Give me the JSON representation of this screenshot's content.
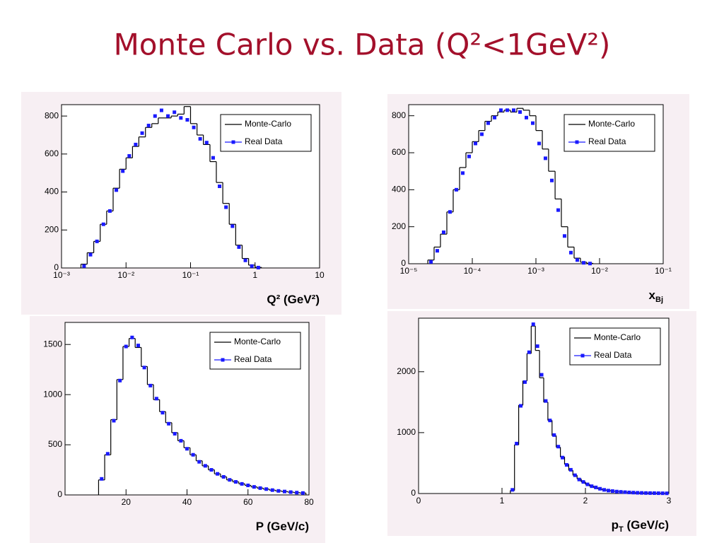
{
  "title": "Monte Carlo vs. Data (Q²<1GeV²)",
  "chart_data": [
    {
      "type": "histogram",
      "xlabel": [
        {
          "text": "Q² (GeV²)"
        }
      ],
      "xscale": "log",
      "xlim": [
        0.001,
        10
      ],
      "xticks": [
        {
          "value": 0.001,
          "label": "10⁻³"
        },
        {
          "value": 0.01,
          "label": "10⁻²"
        },
        {
          "value": 0.1,
          "label": "10⁻¹"
        },
        1,
        10
      ],
      "ylim": [
        0,
        860
      ],
      "yticks": [
        0,
        200,
        400,
        600,
        800
      ],
      "bins": [
        0.002,
        0.0025,
        0.00316,
        0.00398,
        0.00501,
        0.00631,
        0.00794,
        0.01,
        0.0126,
        0.0158,
        0.02,
        0.0251,
        0.0316,
        0.0398,
        0.0501,
        0.0631,
        0.0794,
        0.1,
        0.126,
        0.158,
        0.2,
        0.251,
        0.316,
        0.398,
        0.501,
        0.631,
        0.794,
        1,
        1.26
      ],
      "series": [
        {
          "name": "Monte-Carlo",
          "color": "#000000",
          "style": "step",
          "values": [
            20,
            80,
            140,
            230,
            300,
            420,
            520,
            580,
            640,
            690,
            740,
            760,
            790,
            790,
            800,
            810,
            850,
            760,
            700,
            650,
            560,
            450,
            340,
            230,
            120,
            50,
            15,
            3
          ]
        },
        {
          "name": "Real Data",
          "color": "#1a1aff",
          "style": "points",
          "values": [
            10,
            70,
            140,
            230,
            300,
            410,
            510,
            590,
            650,
            710,
            750,
            800,
            830,
            800,
            820,
            790,
            780,
            740,
            680,
            660,
            580,
            430,
            320,
            220,
            110,
            40,
            10,
            2
          ]
        }
      ]
    },
    {
      "type": "histogram",
      "xlabel": [
        {
          "text": "x"
        },
        {
          "text": "Bj",
          "sub": true
        }
      ],
      "xscale": "log",
      "xlim": [
        1e-05,
        0.1
      ],
      "xticks": [
        {
          "value": 1e-05,
          "label": "10⁻⁵"
        },
        {
          "value": 0.0001,
          "label": "10⁻⁴"
        },
        {
          "value": 0.001,
          "label": "10⁻³"
        },
        {
          "value": 0.01,
          "label": "10⁻²"
        },
        {
          "value": 0.1,
          "label": "10⁻¹"
        }
      ],
      "ylim": [
        0,
        860
      ],
      "yticks": [
        0,
        200,
        400,
        600,
        800
      ],
      "bins": [
        2e-05,
        2.51e-05,
        3.16e-05,
        3.98e-05,
        5.01e-05,
        6.31e-05,
        7.94e-05,
        0.0001,
        0.000126,
        0.000158,
        0.0002,
        0.000251,
        0.000316,
        0.000398,
        0.000501,
        0.000631,
        0.000794,
        0.001,
        0.00126,
        0.00158,
        0.002,
        0.00251,
        0.00316,
        0.00398,
        0.00501,
        0.00631,
        0.00794
      ],
      "series": [
        {
          "name": "Monte-Carlo",
          "color": "#000000",
          "style": "step",
          "values": [
            20,
            90,
            160,
            280,
            400,
            520,
            600,
            660,
            720,
            770,
            800,
            820,
            830,
            820,
            840,
            830,
            800,
            720,
            620,
            500,
            350,
            200,
            90,
            30,
            8,
            2
          ]
        },
        {
          "name": "Real Data",
          "color": "#1a1aff",
          "style": "points",
          "values": [
            10,
            70,
            170,
            280,
            400,
            490,
            580,
            650,
            700,
            760,
            790,
            830,
            830,
            830,
            820,
            790,
            760,
            650,
            570,
            450,
            290,
            150,
            60,
            20,
            5,
            1
          ]
        }
      ]
    },
    {
      "type": "histogram",
      "xlabel": [
        {
          "text": "P (GeV/c)"
        }
      ],
      "xscale": "linear",
      "xlim": [
        0,
        80
      ],
      "xticks": [
        20,
        40,
        60,
        80
      ],
      "ylim": [
        0,
        1720
      ],
      "yticks": [
        0,
        500,
        1000,
        1500
      ],
      "bins": [
        11,
        13,
        15,
        17,
        19,
        21,
        23,
        25,
        27,
        29,
        31,
        33,
        35,
        37,
        39,
        41,
        43,
        45,
        47,
        49,
        51,
        53,
        55,
        57,
        59,
        61,
        63,
        65,
        67,
        69,
        71,
        73,
        75,
        77,
        79
      ],
      "series": [
        {
          "name": "Monte-Carlo",
          "color": "#000000",
          "style": "step",
          "values": [
            150,
            400,
            750,
            1150,
            1480,
            1560,
            1470,
            1280,
            1100,
            950,
            830,
            720,
            620,
            540,
            470,
            400,
            340,
            290,
            250,
            210,
            180,
            150,
            130,
            110,
            95,
            80,
            68,
            58,
            48,
            40,
            34,
            28,
            23,
            19
          ]
        },
        {
          "name": "Real Data",
          "color": "#1a1aff",
          "style": "points",
          "values": [
            160,
            410,
            740,
            1140,
            1480,
            1570,
            1490,
            1270,
            1090,
            960,
            820,
            710,
            610,
            540,
            460,
            400,
            330,
            290,
            250,
            210,
            180,
            150,
            130,
            110,
            95,
            80,
            68,
            58,
            48,
            40,
            34,
            28,
            23,
            19
          ]
        }
      ]
    },
    {
      "type": "histogram",
      "xlabel": [
        {
          "text": "p"
        },
        {
          "text": "T",
          "sub": true
        },
        {
          "text": " (GeV/c)"
        }
      ],
      "xscale": "linear",
      "xlim": [
        0,
        3
      ],
      "xticks": [
        0,
        1,
        2,
        3
      ],
      "ylim": [
        0,
        2880
      ],
      "yticks": [
        0,
        1000,
        2000
      ],
      "bins": [
        1.1,
        1.15,
        1.2,
        1.25,
        1.3,
        1.35,
        1.4,
        1.45,
        1.5,
        1.55,
        1.6,
        1.65,
        1.7,
        1.75,
        1.8,
        1.85,
        1.9,
        1.95,
        2.0,
        2.05,
        2.1,
        2.15,
        2.2,
        2.25,
        2.3,
        2.35,
        2.4,
        2.45,
        2.5,
        2.55,
        2.6,
        2.65,
        2.7,
        2.75,
        2.8,
        2.85,
        2.9,
        2.95,
        3.0
      ],
      "series": [
        {
          "name": "Monte-Carlo",
          "color": "#000000",
          "style": "step",
          "values": [
            50,
            800,
            1450,
            1850,
            2300,
            2750,
            2350,
            1900,
            1500,
            1200,
            950,
            760,
            600,
            480,
            380,
            300,
            240,
            190,
            150,
            120,
            95,
            75,
            60,
            50,
            40,
            33,
            27,
            22,
            18,
            15,
            12,
            10,
            8,
            7,
            6,
            5,
            4,
            3
          ]
        },
        {
          "name": "Real Data",
          "color": "#1a1aff",
          "style": "points",
          "values": [
            60,
            820,
            1440,
            1830,
            2320,
            2780,
            2420,
            1950,
            1520,
            1200,
            960,
            770,
            590,
            470,
            390,
            300,
            230,
            190,
            150,
            120,
            100,
            78,
            60,
            48,
            40,
            32,
            27,
            22,
            18,
            15,
            12,
            10,
            8,
            7,
            6,
            5,
            4,
            3
          ]
        }
      ]
    }
  ]
}
